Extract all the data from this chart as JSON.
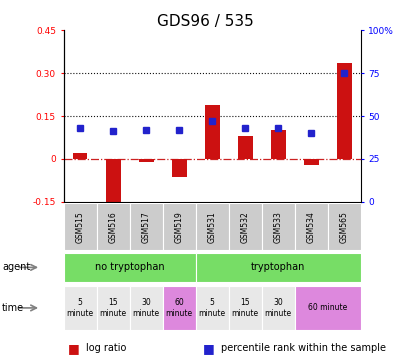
{
  "title": "GDS96 / 535",
  "samples": [
    "GSM515",
    "GSM516",
    "GSM517",
    "GSM519",
    "GSM531",
    "GSM532",
    "GSM533",
    "GSM534",
    "GSM565"
  ],
  "log_ratio": [
    0.02,
    -0.185,
    -0.01,
    -0.065,
    0.19,
    0.08,
    0.1,
    -0.02,
    0.335
  ],
  "percentile_rank": [
    43,
    41,
    42,
    42,
    47,
    43,
    43,
    40,
    75
  ],
  "ylim_left": [
    -0.15,
    0.45
  ],
  "ylim_right": [
    0,
    100
  ],
  "yticks_left": [
    -0.15,
    0,
    0.15,
    0.3,
    0.45
  ],
  "yticks_right": [
    0,
    25,
    50,
    75,
    100
  ],
  "bar_color": "#cc1111",
  "dot_color": "#2222cc",
  "hline_zero_color": "#cc2222",
  "hline_dotted_color": "#111111",
  "sample_bg_color": "#cccccc",
  "agent_color": "#77dd66",
  "time_colors_no": [
    "#e8e8e8",
    "#e8e8e8",
    "#e8e8e8",
    "#dd88dd"
  ],
  "time_colors_tryp": [
    "#e8e8e8",
    "#e8e8e8",
    "#e8e8e8",
    "#dd88dd"
  ],
  "time_labels_no": [
    "5\nminute",
    "15\nminute",
    "30\nminute",
    "60\nminute"
  ],
  "time_labels_tryp": [
    "5\nminute",
    "15\nminute",
    "30\nminute",
    "60 minute"
  ],
  "time_spans_tryp": [
    1,
    1,
    1,
    2
  ],
  "title_fontsize": 11,
  "tick_fontsize": 6.5,
  "sample_fontsize": 5.5,
  "annot_fontsize": 7,
  "legend_fontsize": 7
}
